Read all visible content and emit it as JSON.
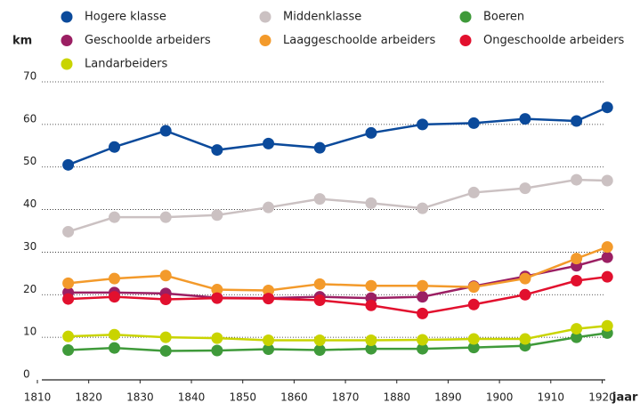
{
  "chart_data": {
    "type": "line",
    "y_label": "km",
    "x_label": "jaar",
    "x": [
      1816,
      1825,
      1835,
      1845,
      1855,
      1865,
      1875,
      1885,
      1895,
      1905,
      1915,
      1921
    ],
    "series": [
      {
        "name": "Hogere klasse",
        "color": "#0b4a9b",
        "values": [
          50.5,
          54.7,
          58.5,
          54,
          55.5,
          54.5,
          58,
          60,
          60.3,
          61.3,
          60.8,
          64
        ]
      },
      {
        "name": "Middenklasse",
        "color": "#cbc1c2",
        "values": [
          34.8,
          38.2,
          38.2,
          38.7,
          40.5,
          42.5,
          41.5,
          40.3,
          44,
          45,
          47,
          46.8
        ]
      },
      {
        "name": "Boeren",
        "color": "#3f9a3a",
        "values": [
          7,
          7.5,
          6.8,
          6.9,
          7.2,
          7,
          7.3,
          7.3,
          7.6,
          8,
          10,
          11
        ]
      },
      {
        "name": "Geschoolde arbeiders",
        "color": "#9b1f63",
        "values": [
          20.5,
          20.5,
          20.3,
          19.3,
          19.2,
          19.5,
          19.2,
          19.5,
          22,
          24.3,
          26.8,
          28.8
        ]
      },
      {
        "name": "Laaggeschoolde arbeiders",
        "color": "#f39a2b",
        "values": [
          22.7,
          23.8,
          24.5,
          21.2,
          21,
          22.5,
          22.1,
          22.1,
          21.8,
          23.8,
          28.5,
          31.2
        ]
      },
      {
        "name": "Ongeschoolde arbeiders",
        "color": "#e2102e",
        "values": [
          19,
          19.5,
          18.9,
          19.2,
          19.1,
          18.7,
          17.5,
          15.6,
          17.7,
          20,
          23.3,
          24.2
        ]
      },
      {
        "name": "Landarbeiders",
        "color": "#c9d400",
        "values": [
          10.2,
          10.6,
          10,
          9.8,
          9.3,
          9.3,
          9.3,
          9.4,
          9.6,
          9.6,
          12,
          12.7
        ]
      }
    ],
    "xlim": [
      1810,
      1922
    ],
    "xticks": [
      1810,
      1820,
      1830,
      1840,
      1850,
      1860,
      1870,
      1880,
      1890,
      1900,
      1910,
      1920
    ],
    "ylim": [
      0,
      70
    ],
    "yticks": [
      0,
      10,
      20,
      30,
      40,
      50,
      60,
      70
    ],
    "grid": true
  }
}
